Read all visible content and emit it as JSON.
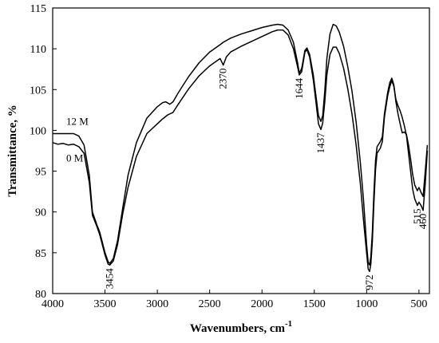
{
  "chart_data": {
    "type": "line",
    "xlabel": "Wavenumbers, cm",
    "xlabel_superscript": "-1",
    "ylabel": "Transmittance, %",
    "xlim": [
      4000,
      400
    ],
    "ylim": [
      80,
      115
    ],
    "x_ticks": [
      4000,
      3500,
      3000,
      2500,
      2000,
      1500,
      1000,
      500
    ],
    "y_ticks": [
      80,
      85,
      90,
      95,
      100,
      105,
      110,
      115
    ],
    "series": [
      {
        "name": "12 M",
        "color": "#000000",
        "points": [
          [
            4000,
            99.6
          ],
          [
            3900,
            99.6
          ],
          [
            3800,
            99.6
          ],
          [
            3750,
            99.3
          ],
          [
            3700,
            98.2
          ],
          [
            3650,
            94.5
          ],
          [
            3620,
            90.0
          ],
          [
            3580,
            88.5
          ],
          [
            3550,
            87.5
          ],
          [
            3500,
            85.0
          ],
          [
            3470,
            83.9
          ],
          [
            3454,
            83.7
          ],
          [
            3420,
            84.3
          ],
          [
            3380,
            86.5
          ],
          [
            3330,
            90.5
          ],
          [
            3280,
            94.5
          ],
          [
            3200,
            98.5
          ],
          [
            3100,
            101.5
          ],
          [
            3000,
            102.9
          ],
          [
            2950,
            103.4
          ],
          [
            2920,
            103.5
          ],
          [
            2880,
            103.2
          ],
          [
            2850,
            103.5
          ],
          [
            2800,
            104.6
          ],
          [
            2700,
            106.6
          ],
          [
            2600,
            108.3
          ],
          [
            2500,
            109.6
          ],
          [
            2400,
            110.5
          ],
          [
            2370,
            110.8
          ],
          [
            2300,
            111.3
          ],
          [
            2200,
            111.8
          ],
          [
            2100,
            112.2
          ],
          [
            2000,
            112.6
          ],
          [
            1900,
            112.9
          ],
          [
            1850,
            113.0
          ],
          [
            1800,
            112.9
          ],
          [
            1750,
            112.3
          ],
          [
            1700,
            110.8
          ],
          [
            1660,
            108.3
          ],
          [
            1644,
            107.0
          ],
          [
            1620,
            107.6
          ],
          [
            1590,
            109.8
          ],
          [
            1570,
            110.1
          ],
          [
            1545,
            109.3
          ],
          [
            1510,
            106.8
          ],
          [
            1480,
            103.8
          ],
          [
            1460,
            101.8
          ],
          [
            1440,
            101.2
          ],
          [
            1437,
            101.1
          ],
          [
            1420,
            101.8
          ],
          [
            1400,
            104.8
          ],
          [
            1380,
            108.8
          ],
          [
            1350,
            111.8
          ],
          [
            1320,
            113.0
          ],
          [
            1290,
            112.8
          ],
          [
            1260,
            112.0
          ],
          [
            1220,
            110.3
          ],
          [
            1180,
            107.8
          ],
          [
            1140,
            104.8
          ],
          [
            1100,
            101.0
          ],
          [
            1060,
            96.0
          ],
          [
            1030,
            91.5
          ],
          [
            1000,
            86.0
          ],
          [
            985,
            83.8
          ],
          [
            972,
            83.5
          ],
          [
            960,
            84.5
          ],
          [
            945,
            87.5
          ],
          [
            930,
            92.5
          ],
          [
            915,
            96.3
          ],
          [
            900,
            98.0
          ],
          [
            870,
            98.6
          ],
          [
            850,
            99.2
          ],
          [
            830,
            102.0
          ],
          [
            800,
            104.6
          ],
          [
            780,
            105.8
          ],
          [
            760,
            106.4
          ],
          [
            740,
            105.6
          ],
          [
            720,
            103.5
          ],
          [
            700,
            102.0
          ],
          [
            680,
            100.8
          ],
          [
            660,
            99.7
          ],
          [
            640,
            99.8
          ],
          [
            620,
            99.5
          ],
          [
            600,
            98.2
          ],
          [
            580,
            96.5
          ],
          [
            560,
            94.6
          ],
          [
            540,
            93.3
          ],
          [
            515,
            92.6
          ],
          [
            500,
            93.0
          ],
          [
            480,
            92.4
          ],
          [
            460,
            91.9
          ],
          [
            440,
            95.0
          ],
          [
            420,
            98.2
          ]
        ]
      },
      {
        "name": "0 M",
        "color": "#000000",
        "points": [
          [
            4000,
            98.5
          ],
          [
            3950,
            98.3
          ],
          [
            3900,
            98.4
          ],
          [
            3850,
            98.2
          ],
          [
            3800,
            98.3
          ],
          [
            3750,
            98.0
          ],
          [
            3700,
            97.2
          ],
          [
            3650,
            93.6
          ],
          [
            3620,
            89.6
          ],
          [
            3580,
            88.3
          ],
          [
            3550,
            87.2
          ],
          [
            3500,
            84.7
          ],
          [
            3470,
            83.6
          ],
          [
            3454,
            83.5
          ],
          [
            3420,
            84.0
          ],
          [
            3380,
            86.0
          ],
          [
            3330,
            89.8
          ],
          [
            3280,
            93.0
          ],
          [
            3200,
            96.8
          ],
          [
            3100,
            99.6
          ],
          [
            3000,
            100.8
          ],
          [
            2950,
            101.4
          ],
          [
            2900,
            101.9
          ],
          [
            2850,
            102.2
          ],
          [
            2800,
            103.2
          ],
          [
            2700,
            105.1
          ],
          [
            2600,
            106.7
          ],
          [
            2500,
            107.9
          ],
          [
            2400,
            108.8
          ],
          [
            2370,
            108.0
          ],
          [
            2340,
            109.0
          ],
          [
            2300,
            109.6
          ],
          [
            2200,
            110.3
          ],
          [
            2100,
            110.9
          ],
          [
            2000,
            111.5
          ],
          [
            1900,
            112.1
          ],
          [
            1850,
            112.3
          ],
          [
            1800,
            112.3
          ],
          [
            1750,
            111.7
          ],
          [
            1700,
            110.0
          ],
          [
            1660,
            107.8
          ],
          [
            1644,
            106.8
          ],
          [
            1620,
            107.2
          ],
          [
            1590,
            109.6
          ],
          [
            1570,
            109.9
          ],
          [
            1545,
            109.0
          ],
          [
            1510,
            106.2
          ],
          [
            1480,
            103.0
          ],
          [
            1460,
            100.8
          ],
          [
            1440,
            100.2
          ],
          [
            1437,
            100.1
          ],
          [
            1420,
            100.9
          ],
          [
            1400,
            103.5
          ],
          [
            1380,
            106.8
          ],
          [
            1350,
            109.3
          ],
          [
            1320,
            110.2
          ],
          [
            1290,
            110.2
          ],
          [
            1260,
            109.4
          ],
          [
            1220,
            107.6
          ],
          [
            1180,
            105.1
          ],
          [
            1140,
            102.0
          ],
          [
            1100,
            98.2
          ],
          [
            1060,
            93.4
          ],
          [
            1030,
            89.0
          ],
          [
            1000,
            85.0
          ],
          [
            985,
            83.0
          ],
          [
            972,
            82.7
          ],
          [
            960,
            83.6
          ],
          [
            945,
            86.4
          ],
          [
            930,
            91.2
          ],
          [
            915,
            95.2
          ],
          [
            900,
            97.2
          ],
          [
            870,
            97.8
          ],
          [
            850,
            98.6
          ],
          [
            830,
            101.6
          ],
          [
            800,
            104.2
          ],
          [
            780,
            105.3
          ],
          [
            760,
            106.1
          ],
          [
            740,
            105.4
          ],
          [
            720,
            103.8
          ],
          [
            700,
            103.0
          ],
          [
            680,
            102.4
          ],
          [
            660,
            101.6
          ],
          [
            640,
            100.6
          ],
          [
            620,
            99.4
          ],
          [
            600,
            97.2
          ],
          [
            580,
            95.0
          ],
          [
            560,
            92.8
          ],
          [
            540,
            91.6
          ],
          [
            515,
            90.8
          ],
          [
            500,
            91.2
          ],
          [
            480,
            90.8
          ],
          [
            460,
            90.2
          ],
          [
            440,
            93.5
          ],
          [
            420,
            97.5
          ]
        ]
      }
    ],
    "series_labels": [
      {
        "text": "12 M",
        "x": 3870,
        "y": 100.7
      },
      {
        "text": "0 M",
        "x": 3870,
        "y": 96.2
      }
    ],
    "annotations": [
      {
        "text": "3454",
        "x": 3454,
        "y": 83.5
      },
      {
        "text": "2370",
        "x": 2370,
        "y": 108.0
      },
      {
        "text": "1644",
        "x": 1644,
        "y": 106.8
      },
      {
        "text": "1437",
        "x": 1437,
        "y": 100.1
      },
      {
        "text": "972",
        "x": 972,
        "y": 82.7
      },
      {
        "text": "515",
        "x": 515,
        "y": 90.8
      },
      {
        "text": "460",
        "x": 460,
        "y": 90.2
      }
    ]
  }
}
